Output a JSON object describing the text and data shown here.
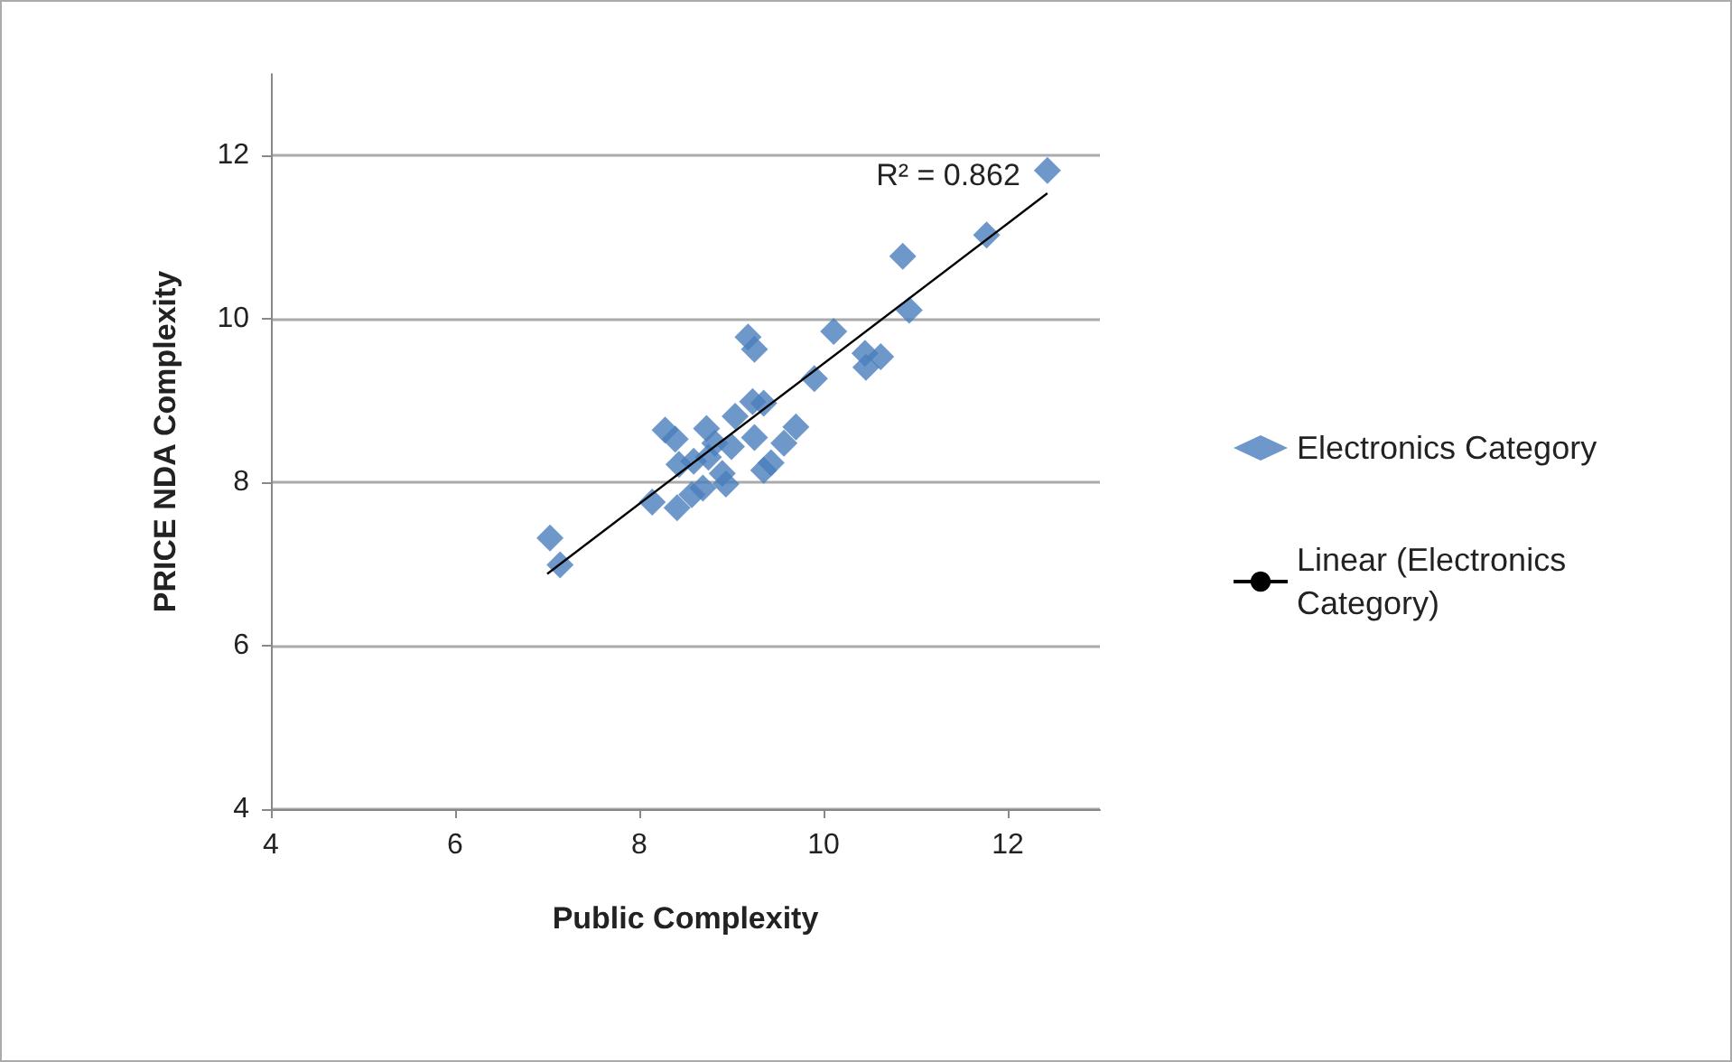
{
  "chart_data": {
    "type": "scatter",
    "xlabel": "Public Complexity",
    "ylabel": "PRICE NDA Complexity",
    "xlim": [
      4,
      13
    ],
    "ylim": [
      4,
      13
    ],
    "xticks": [
      4,
      6,
      8,
      10,
      12
    ],
    "yticks": [
      4,
      6,
      8,
      10,
      12
    ],
    "grid": "y",
    "legend": "right",
    "marker": "diamond",
    "annotations": [
      "R² = 0.862"
    ],
    "series": [
      {
        "name": "Electronics Category",
        "color": "#4a7ebb",
        "x": [
          7.03,
          7.14,
          8.14,
          8.28,
          8.39,
          8.43,
          8.41,
          8.57,
          8.69,
          8.73,
          8.82,
          8.75,
          8.9,
          8.94,
          9.04,
          9.18,
          9.25,
          9.23,
          9.25,
          9.35,
          9.43,
          9.35,
          9.57,
          9.7,
          9.9,
          10.11,
          10.45,
          10.46,
          10.62,
          10.86,
          10.93,
          11.77,
          12.43,
          8.59,
          9.0
        ],
        "values": [
          7.32,
          6.99,
          7.76,
          8.64,
          8.53,
          8.22,
          7.69,
          7.85,
          7.93,
          8.66,
          8.48,
          8.31,
          8.11,
          7.98,
          8.81,
          9.78,
          9.63,
          8.99,
          8.55,
          8.15,
          8.24,
          8.97,
          8.48,
          8.68,
          9.27,
          9.85,
          9.58,
          9.41,
          9.54,
          10.77,
          10.11,
          11.03,
          11.82,
          8.26,
          8.44
        ]
      },
      {
        "name": "Linear (Electronics Category)",
        "type": "line",
        "color": "#000000",
        "marker": "none",
        "line_style": "solid",
        "x": [
          7.0,
          12.43
        ],
        "values": [
          6.88,
          11.54
        ]
      }
    ]
  }
}
